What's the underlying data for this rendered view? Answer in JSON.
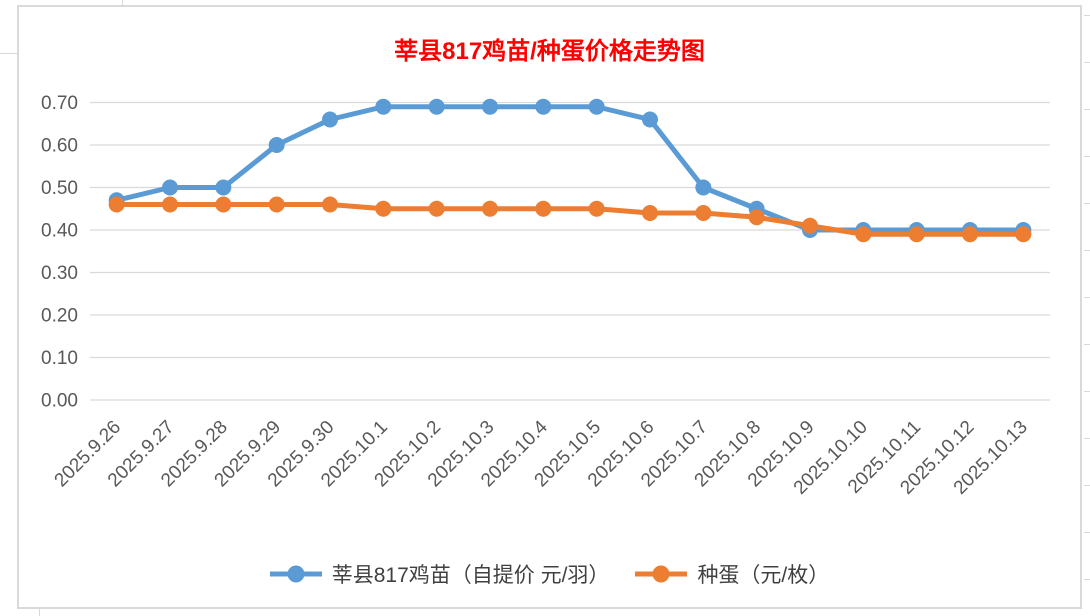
{
  "chart_data": {
    "type": "line",
    "title": "莘县817鸡苗/种蛋价格走势图",
    "title_color": "#FF0000",
    "categories": [
      "2025.9.26",
      "2025.9.27",
      "2025.9.28",
      "2025.9.29",
      "2025.9.30",
      "2025.10.1",
      "2025.10.2",
      "2025.10.3",
      "2025.10.4",
      "2025.10.5",
      "2025.10.6",
      "2025.10.7",
      "2025.10.8",
      "2025.10.9",
      "2025.10.10",
      "2025.10.11",
      "2025.10.12",
      "2025.10.13"
    ],
    "series": [
      {
        "name": "莘县817鸡苗（自提价 元/羽）",
        "color": "#5B9BD5",
        "values": [
          0.47,
          0.5,
          0.5,
          0.6,
          0.66,
          0.69,
          0.69,
          0.69,
          0.69,
          0.69,
          0.66,
          0.5,
          0.45,
          0.4,
          0.4,
          0.4,
          0.4,
          0.4
        ]
      },
      {
        "name": "种蛋（元/枚）",
        "color": "#ED7D31",
        "values": [
          0.46,
          0.46,
          0.46,
          0.46,
          0.46,
          0.45,
          0.45,
          0.45,
          0.45,
          0.45,
          0.44,
          0.44,
          0.43,
          0.41,
          0.39,
          0.39,
          0.39,
          0.39
        ]
      }
    ],
    "ylim": [
      0,
      0.7
    ],
    "ytick_step": 0.1,
    "ytick_labels": [
      "0.00",
      "0.10",
      "0.20",
      "0.30",
      "0.40",
      "0.50",
      "0.60",
      "0.70"
    ],
    "grid": true,
    "grid_color": "#D9D9D9",
    "axis_label_color": "#595959",
    "legend_position": "bottom",
    "marker": "circle"
  }
}
